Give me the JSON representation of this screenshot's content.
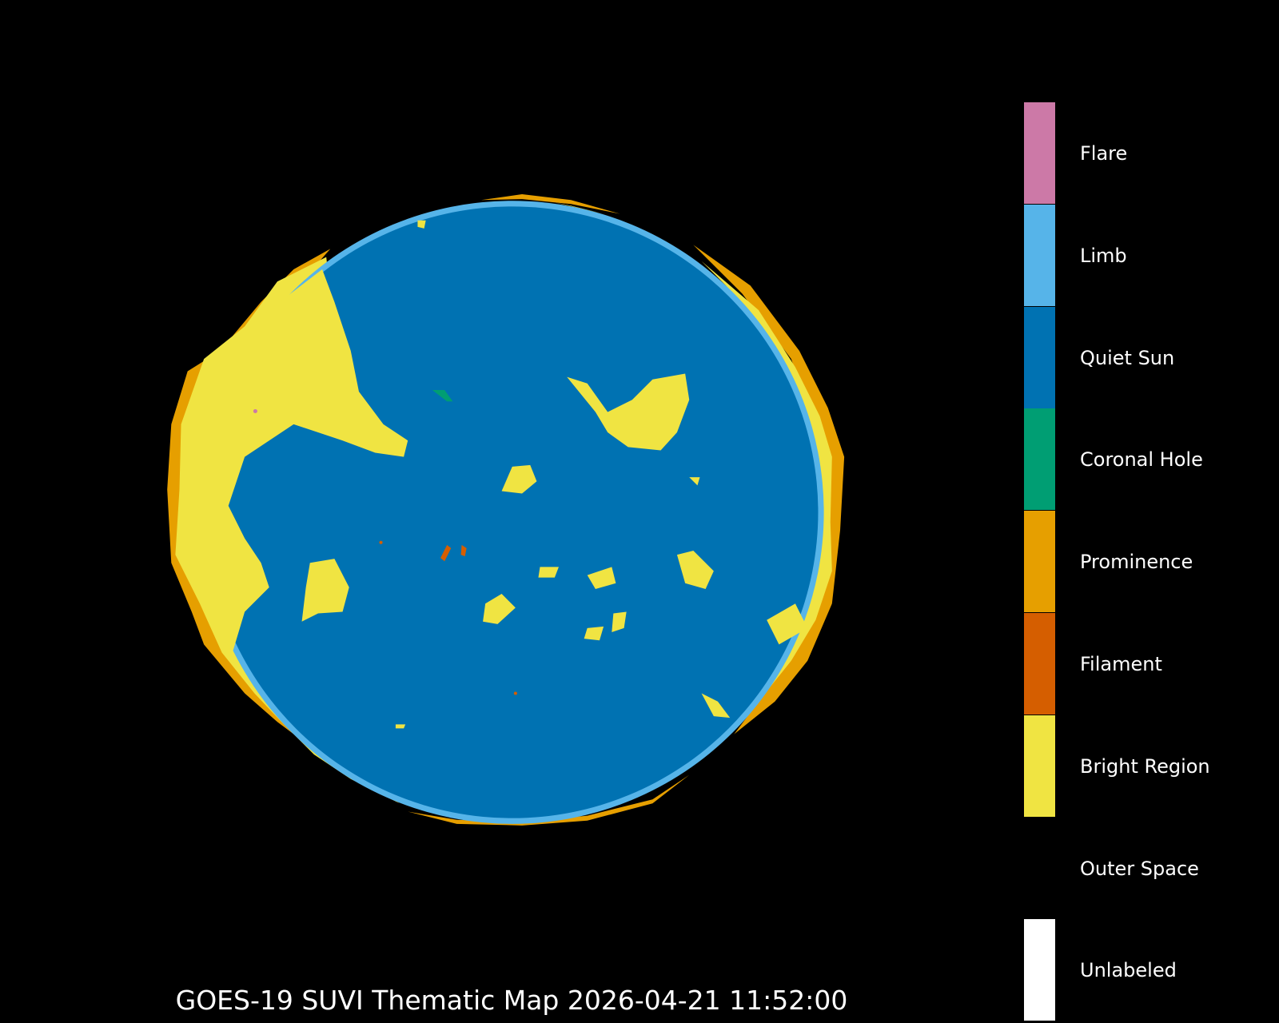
{
  "chart_data": {
    "type": "heatmap",
    "title": "GOES-19 SUVI Thematic Map 2026-04-21 11:52:00",
    "legend_placement": "right",
    "legend": [
      {
        "label": "Flare",
        "color": "#cc79a7"
      },
      {
        "label": "Limb",
        "color": "#56b4e9"
      },
      {
        "label": "Quiet Sun",
        "color": "#0072b2"
      },
      {
        "label": "Coronal Hole",
        "color": "#009e73"
      },
      {
        "label": "Prominence",
        "color": "#e69f00"
      },
      {
        "label": "Filament",
        "color": "#d55e00"
      },
      {
        "label": "Bright Region",
        "color": "#f0e442"
      },
      {
        "label": "Outer Space",
        "color": "#000000"
      },
      {
        "label": "Unlabeled",
        "color": "#ffffff"
      }
    ]
  }
}
